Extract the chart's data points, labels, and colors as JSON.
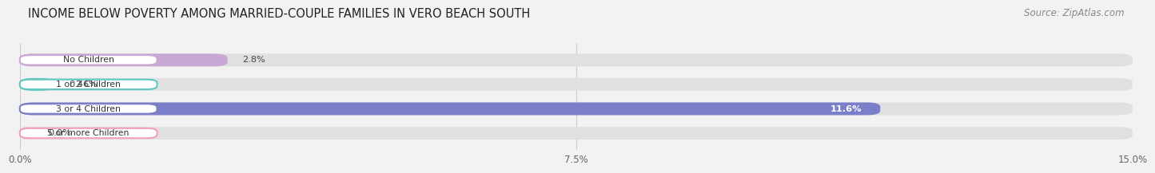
{
  "title": "INCOME BELOW POVERTY AMONG MARRIED-COUPLE FAMILIES IN VERO BEACH SOUTH",
  "source": "Source: ZipAtlas.com",
  "categories": [
    "No Children",
    "1 or 2 Children",
    "3 or 4 Children",
    "5 or more Children"
  ],
  "values": [
    2.8,
    0.46,
    11.6,
    0.0
  ],
  "bar_colors": [
    "#c9a8d4",
    "#5ec8c0",
    "#7b7ec8",
    "#f4a0b5"
  ],
  "xlim": [
    0,
    15.0
  ],
  "xticks": [
    0.0,
    7.5,
    15.0
  ],
  "xtick_labels": [
    "0.0%",
    "7.5%",
    "15.0%"
  ],
  "background_color": "#f2f2f2",
  "bar_background_color": "#e0e0e0",
  "title_fontsize": 10.5,
  "source_fontsize": 8.5,
  "value_labels": [
    "2.8%",
    "0.46%",
    "11.6%",
    "0.0%"
  ],
  "value_label_inside": [
    false,
    false,
    true,
    false
  ]
}
